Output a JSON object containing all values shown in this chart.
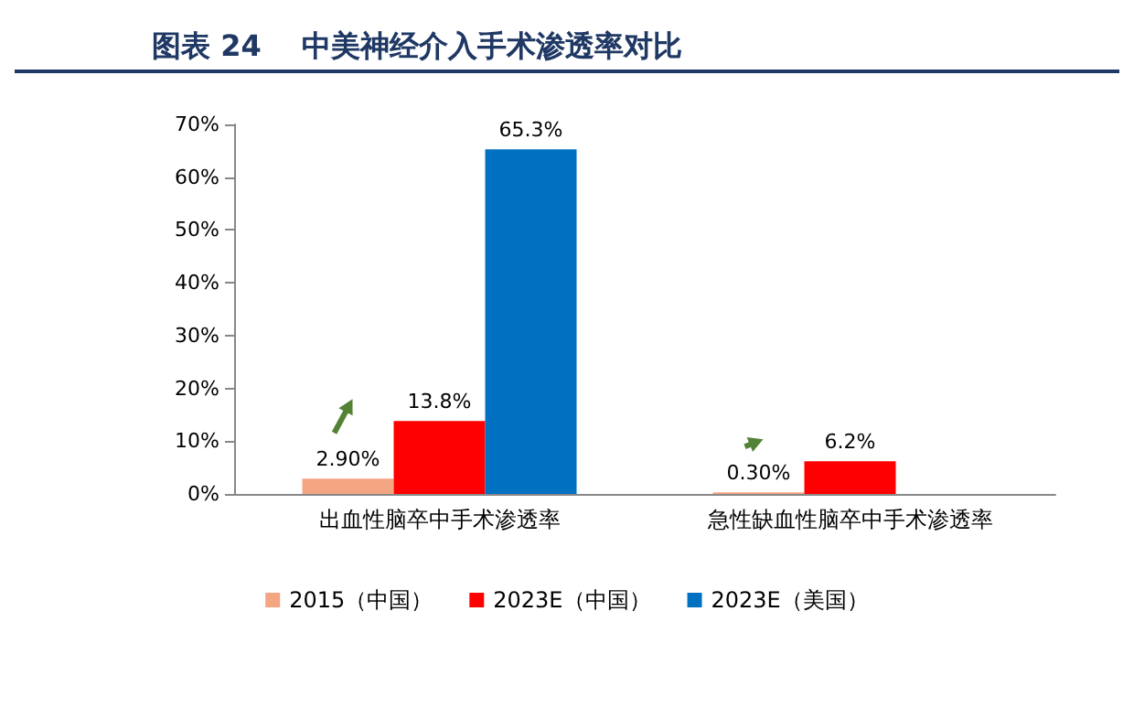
{
  "chart_data": {
    "type": "bar",
    "title": "图表 24    中美神经介入手术渗透率对比",
    "categories": [
      "出血性脑卒中手术渗透率",
      "急性缺血性脑卒中手术渗透率"
    ],
    "series": [
      {
        "name": "2015（中国）",
        "color": "#f4a582",
        "values": [
          2.9,
          0.3
        ],
        "value_labels": [
          "2.90%",
          "0.30%"
        ]
      },
      {
        "name": "2023E（中国）",
        "color": "#ff0000",
        "values": [
          13.8,
          6.2
        ],
        "value_labels": [
          "13.8%",
          "6.2%"
        ]
      },
      {
        "name": "2023E（美国）",
        "color": "#0070c0",
        "values": [
          65.3,
          null
        ],
        "value_labels": [
          "65.3%",
          null
        ]
      }
    ],
    "ylim": [
      0,
      70
    ],
    "yticks": [
      {
        "value": 0,
        "label": "0%"
      },
      {
        "value": 10,
        "label": "10%"
      },
      {
        "value": 20,
        "label": "20%"
      },
      {
        "value": 30,
        "label": "30%"
      },
      {
        "value": 40,
        "label": "40%"
      },
      {
        "value": 50,
        "label": "50%"
      },
      {
        "value": 60,
        "label": "60%"
      },
      {
        "value": 70,
        "label": "70%"
      }
    ],
    "grid": false,
    "legend": "bottom"
  }
}
